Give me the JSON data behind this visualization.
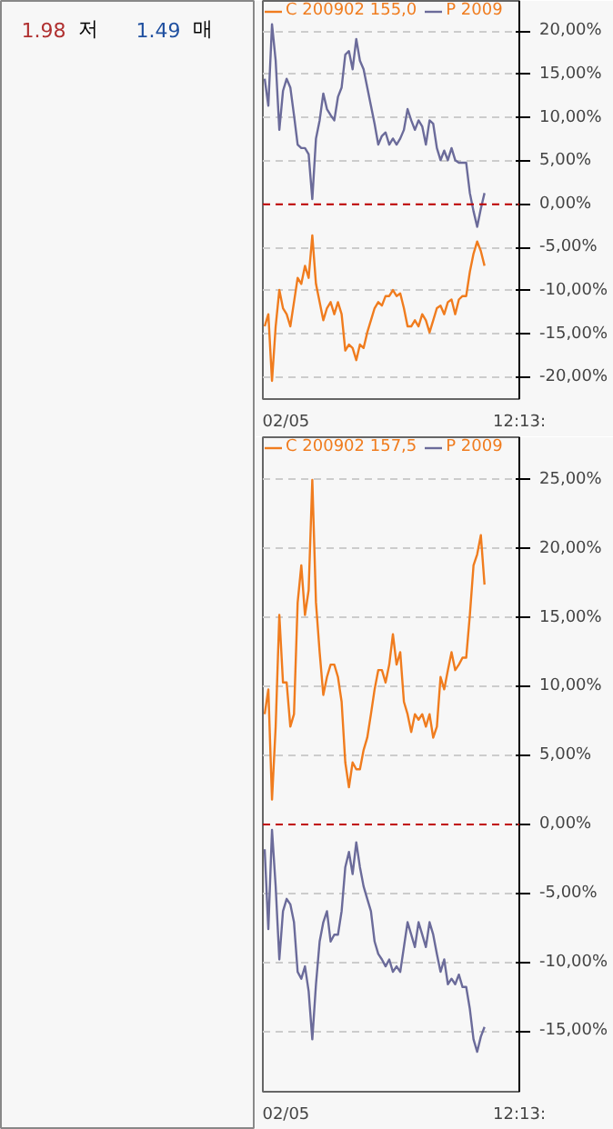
{
  "chart_data": [
    {
      "type": "other",
      "annotations": [
        "1.98",
        "저",
        "1.49",
        "매"
      ]
    },
    {
      "type": "line",
      "categories": [
        null,
        null,
        null,
        null,
        null,
        null,
        null,
        null,
        null,
        null,
        null,
        null,
        null,
        null,
        null,
        null,
        null,
        null,
        null,
        null,
        null,
        null,
        null,
        null,
        null,
        null,
        null,
        null,
        null,
        null,
        null,
        null,
        null,
        null,
        null,
        null,
        null,
        null,
        null,
        null,
        null,
        null,
        null,
        null,
        null,
        null,
        null,
        null,
        null,
        null,
        null,
        null,
        null,
        null,
        null,
        null,
        null,
        null,
        null,
        null,
        null,
        null,
        null,
        null,
        null,
        null,
        null,
        null,
        null,
        null
      ],
      "series": [
        {
          "name": "C 200902 155,0",
          "color": "#f07c1e",
          "values": [
            -14.1,
            -12.7,
            -20.4,
            -14.1,
            -9.9,
            -12.0,
            -12.7,
            -14.1,
            -11.3,
            -8.5,
            -9.2,
            -7.1,
            -8.5,
            -3.6,
            -9.2,
            -11.3,
            -13.4,
            -12.0,
            -11.3,
            -12.7,
            -11.3,
            -12.7,
            -16.9,
            -16.2,
            -16.6,
            -18.0,
            -16.2,
            -16.6,
            -14.8,
            -13.4,
            -12.0,
            -11.3,
            -11.7,
            -10.6,
            -10.6,
            -9.9,
            -10.6,
            -10.3,
            -12.0,
            -14.1,
            -14.1,
            -13.4,
            -14.1,
            -12.7,
            -13.4,
            -14.8,
            -13.4,
            -12.0,
            -11.7,
            -12.7,
            -11.3,
            -11.0,
            -12.7,
            -11.0,
            -10.6,
            -10.6,
            -7.8,
            -5.7,
            -4.3,
            -5.4,
            -7.1,
            null,
            null,
            null,
            null,
            null,
            null,
            null,
            null,
            null
          ]
        },
        {
          "name": "P 2009",
          "color": "#6b6b9a",
          "values": [
            14.5,
            11.4,
            20.8,
            16.6,
            8.6,
            13.1,
            14.5,
            13.5,
            10.3,
            6.9,
            6.5,
            6.5,
            5.8,
            0.6,
            7.6,
            9.7,
            12.8,
            11.0,
            10.3,
            9.7,
            12.4,
            13.5,
            17.3,
            17.7,
            15.6,
            19.1,
            16.6,
            15.6,
            13.5,
            11.4,
            9.3,
            6.9,
            7.9,
            8.3,
            6.9,
            7.6,
            6.9,
            7.6,
            8.6,
            11.0,
            9.7,
            8.6,
            9.7,
            9.0,
            6.9,
            9.7,
            9.3,
            6.5,
            5.1,
            6.2,
            5.1,
            6.5,
            5.1,
            4.8,
            4.8,
            4.8,
            1.3,
            -0.8,
            -2.6,
            -0.5,
            1.3,
            null,
            null,
            null,
            null,
            null,
            null,
            null,
            null,
            null
          ]
        }
      ],
      "ylim": [
        -22.5,
        23.5
      ],
      "yticks": [
        {
          "value": -20,
          "label": "-20,00%"
        },
        {
          "value": -15,
          "label": "-15,00%"
        },
        {
          "value": -10,
          "label": "-10,00%"
        },
        {
          "value": -5,
          "label": "-5,00%"
        },
        {
          "value": 0,
          "label": "0,00%"
        },
        {
          "value": 5,
          "label": "5,00%"
        },
        {
          "value": 10,
          "label": "10,00%"
        },
        {
          "value": 15,
          "label": "15,00%"
        },
        {
          "value": 20,
          "label": "20,00%"
        }
      ],
      "grid": "y",
      "legend": "top left",
      "line_style": "solid",
      "ref_lines": [
        {
          "axis": "y",
          "value": 0,
          "color": "#c00000",
          "line_style": "dashed"
        }
      ],
      "annotations": [
        "02/05",
        "12:13:"
      ]
    },
    {
      "type": "line",
      "categories": [
        null,
        null,
        null,
        null,
        null,
        null,
        null,
        null,
        null,
        null,
        null,
        null,
        null,
        null,
        null,
        null,
        null,
        null,
        null,
        null,
        null,
        null,
        null,
        null,
        null,
        null,
        null,
        null,
        null,
        null,
        null,
        null,
        null,
        null,
        null,
        null,
        null,
        null,
        null,
        null,
        null,
        null,
        null,
        null,
        null,
        null,
        null,
        null,
        null,
        null,
        null,
        null,
        null,
        null,
        null,
        null,
        null,
        null,
        null,
        null,
        null,
        null,
        null,
        null,
        null,
        null,
        null,
        null,
        null,
        null
      ],
      "series": [
        {
          "name": "C 200902 157,5",
          "color": "#f07c1e",
          "values": [
            8.0,
            9.8,
            1.8,
            7.1,
            15.2,
            10.3,
            10.3,
            7.1,
            8.0,
            16.1,
            18.8,
            15.2,
            17.0,
            25.0,
            16.1,
            12.5,
            9.4,
            10.7,
            11.6,
            11.6,
            10.7,
            8.9,
            4.5,
            2.7,
            4.5,
            4.0,
            4.0,
            5.4,
            6.3,
            8.0,
            9.8,
            11.2,
            11.2,
            10.3,
            11.6,
            13.8,
            11.6,
            12.5,
            8.9,
            8.0,
            6.7,
            8.0,
            7.6,
            8.0,
            7.1,
            8.0,
            6.3,
            7.1,
            10.7,
            9.8,
            11.2,
            12.5,
            11.2,
            11.6,
            12.1,
            12.1,
            15.2,
            18.8,
            19.6,
            21.0,
            17.4,
            null,
            null,
            null,
            null,
            null,
            null,
            null,
            null,
            null
          ]
        },
        {
          "name": "P 2009",
          "color": "#6b6b9a",
          "values": [
            -1.8,
            -7.6,
            -0.4,
            -4.5,
            -9.8,
            -6.3,
            -5.4,
            -5.8,
            -7.1,
            -10.7,
            -11.2,
            -10.3,
            -12.1,
            -15.6,
            -11.6,
            -8.5,
            -7.1,
            -6.3,
            -8.5,
            -8.0,
            -8.0,
            -6.3,
            -3.1,
            -2.0,
            -3.6,
            -1.3,
            -3.1,
            -4.5,
            -5.4,
            -6.3,
            -8.5,
            -9.4,
            -9.8,
            -10.3,
            -9.8,
            -10.7,
            -10.3,
            -10.7,
            -8.9,
            -7.1,
            -8.0,
            -8.9,
            -7.1,
            -8.0,
            -8.9,
            -7.1,
            -8.0,
            -9.4,
            -10.7,
            -9.8,
            -11.6,
            -11.2,
            -11.6,
            -10.9,
            -11.8,
            -11.8,
            -13.4,
            -15.6,
            -16.5,
            -15.4,
            -14.7,
            null,
            null,
            null,
            null,
            null,
            null,
            null,
            null,
            null
          ]
        }
      ],
      "ylim": [
        -19.4,
        28.1
      ],
      "yticks": [
        {
          "value": -15,
          "label": "-15,00%"
        },
        {
          "value": -10,
          "label": "-10,00%"
        },
        {
          "value": -5,
          "label": "-5,00%"
        },
        {
          "value": 0,
          "label": "0,00%"
        },
        {
          "value": 5,
          "label": "5,00%"
        },
        {
          "value": 10,
          "label": "10,00%"
        },
        {
          "value": 15,
          "label": "15,00%"
        },
        {
          "value": 20,
          "label": "20,00%"
        },
        {
          "value": 25,
          "label": "25,00%"
        }
      ],
      "grid": "y",
      "legend": "top left",
      "line_style": "solid",
      "ref_lines": [
        {
          "axis": "y",
          "value": 0,
          "color": "#c00000",
          "line_style": "dashed"
        }
      ],
      "annotations": [
        "02/05",
        "12:13:"
      ]
    }
  ]
}
